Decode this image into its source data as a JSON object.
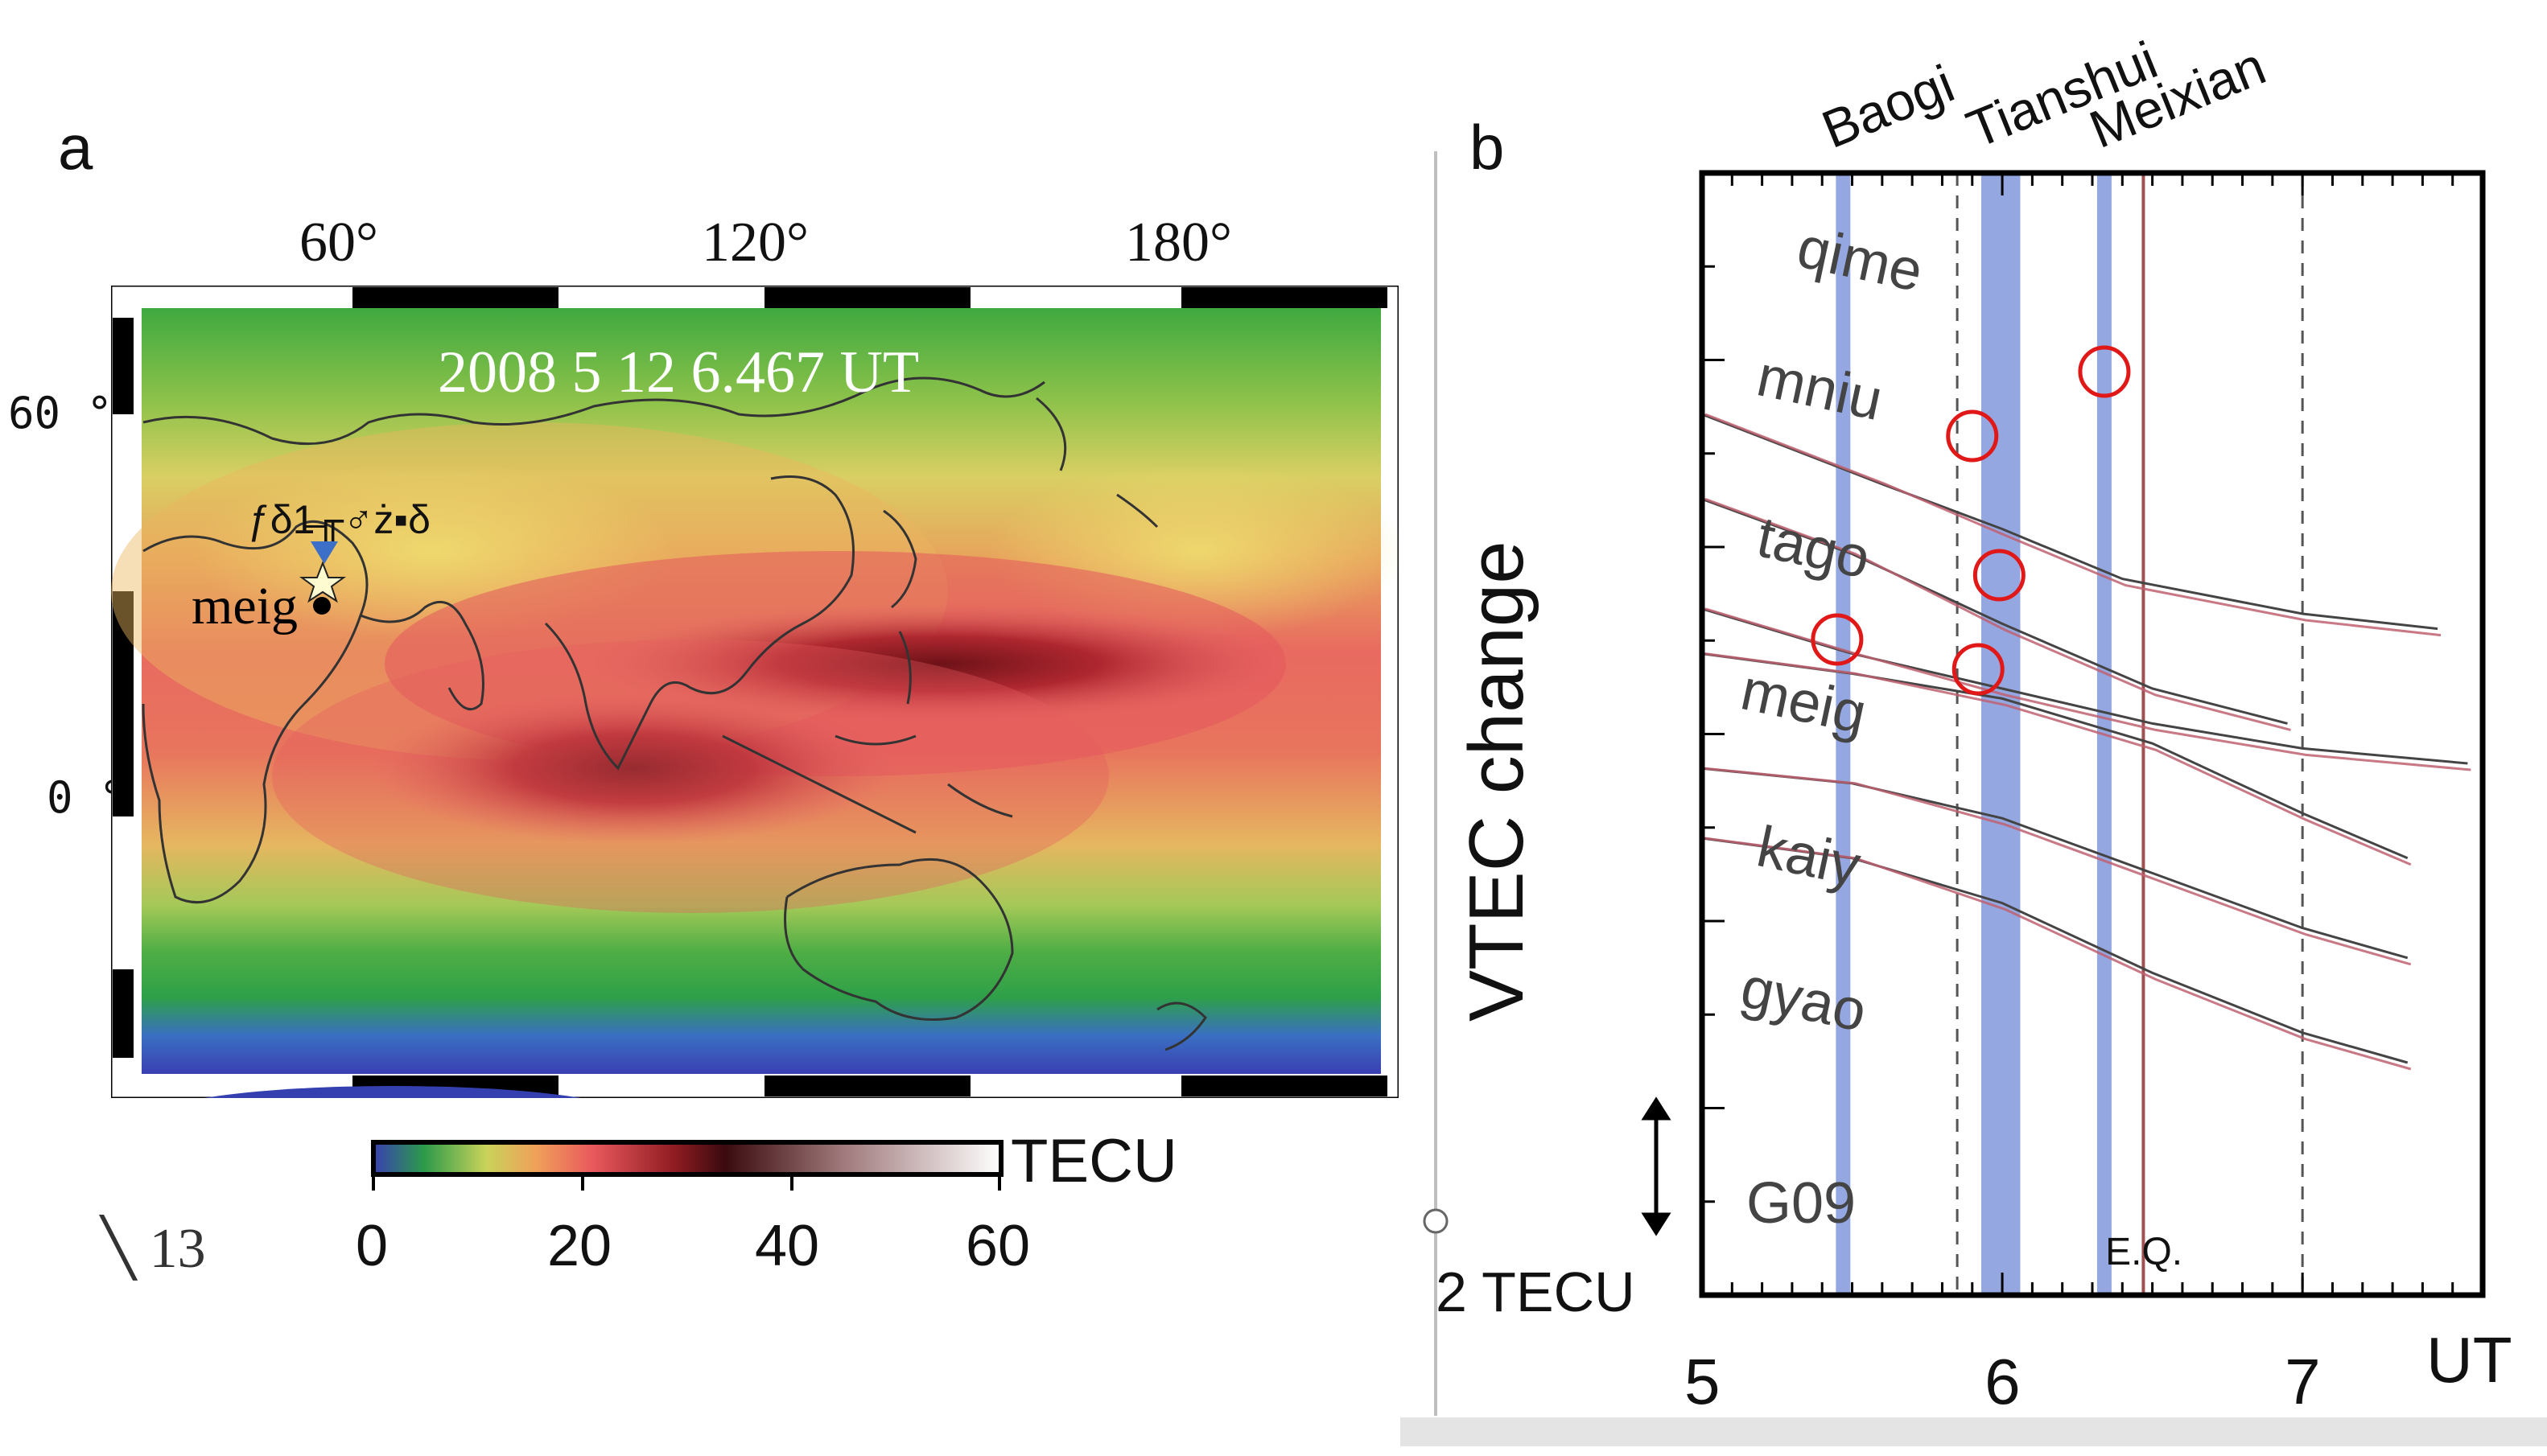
{
  "panel_a": {
    "letter": "a",
    "lon_labels": [
      "60°",
      "120°",
      "180°"
    ],
    "lat_labels": [
      "60 °",
      "0 °"
    ],
    "timestamp": "2008 5 12 6.467 UT",
    "garbled_label": "ƒδ1̶╓♂ż▪δ",
    "station": "meig",
    "colorbar_unit": "TECU",
    "colorbar_ticks": [
      "0",
      "20",
      "40",
      "60"
    ],
    "colorbar_min_label": "╲ 13"
  },
  "panel_b": {
    "letter": "b",
    "y_title": "VTEC change",
    "scale_label": "2 TECU",
    "eq_label": "E.Q.",
    "x_unit": "UT",
    "x_ticks": [
      "5",
      "6",
      "7"
    ],
    "events": [
      "Baogi",
      "Tianshui",
      "Meixian"
    ],
    "stations": [
      "qime",
      "mniu",
      "tago",
      "meig",
      "kaiy",
      "gyao",
      "G09"
    ]
  },
  "chart_data": {
    "type": "line",
    "title": "",
    "xlabel": "UT",
    "ylabel": "VTEC change",
    "xlim": [
      5,
      7.6
    ],
    "x_ticks": [
      5,
      6,
      7
    ],
    "reference_lines": {
      "dashed": [
        5.85,
        7.0
      ],
      "earthquake_time": 6.47
    },
    "event_bands": [
      {
        "name": "Baogi",
        "center": 5.47
      },
      {
        "name": "Tianshui",
        "from": 5.93,
        "to": 6.06
      },
      {
        "name": "Meixian",
        "center": 6.34
      }
    ],
    "scale_bar": "2 TECU",
    "series": [
      {
        "name": "qime",
        "x": [
          5.0,
          5.6,
          6.0,
          6.4,
          7.0,
          7.45
        ],
        "y": [
          10.0,
          8.6,
          7.7,
          6.7,
          6.0,
          5.7
        ]
      },
      {
        "name": "mniu",
        "x": [
          5.0,
          5.5,
          6.0,
          6.5,
          6.95
        ],
        "y": [
          8.3,
          7.2,
          5.8,
          4.5,
          3.8
        ]
      },
      {
        "name": "tago",
        "x": [
          5.0,
          5.5,
          6.0,
          6.5,
          7.0,
          7.55
        ],
        "y": [
          6.1,
          5.2,
          4.5,
          3.8,
          3.3,
          3.0
        ]
      },
      {
        "name": "meig",
        "x": [
          5.0,
          5.5,
          6.0,
          6.5,
          7.0,
          7.35
        ],
        "y": [
          5.2,
          4.8,
          4.3,
          3.4,
          2.0,
          1.1
        ]
      },
      {
        "name": "kaiy",
        "x": [
          5.0,
          5.5,
          6.0,
          6.5,
          7.0,
          7.35
        ],
        "y": [
          2.9,
          2.6,
          1.9,
          0.8,
          -0.3,
          -0.9
        ]
      },
      {
        "name": "gyao",
        "x": [
          5.0,
          5.5,
          6.0,
          6.5,
          7.0,
          7.35
        ],
        "y": [
          1.5,
          1.1,
          0.2,
          -1.2,
          -2.4,
          -3.0
        ]
      }
    ]
  }
}
